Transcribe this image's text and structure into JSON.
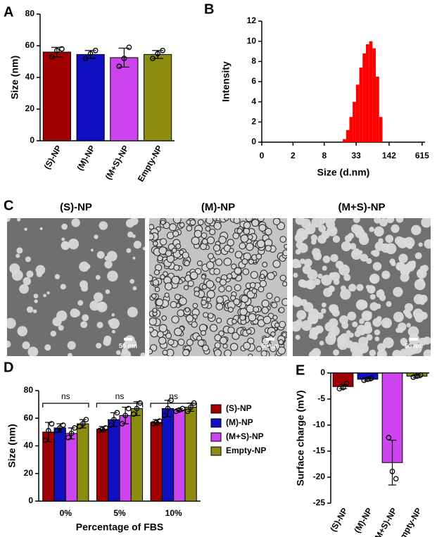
{
  "chart_data": [
    {
      "label": "A",
      "type": "bar",
      "ylabel": "Size (nm)",
      "categories": [
        "(S)-NP",
        "(M)-NP",
        "(M+S)-NP",
        "Empty-NP"
      ],
      "values": [
        56,
        54.5,
        52.5,
        54.5
      ],
      "errors": [
        3,
        2.5,
        6,
        2.5
      ],
      "points": [
        [
          53,
          57,
          58
        ],
        [
          52,
          55,
          57
        ],
        [
          47,
          52,
          59
        ],
        [
          52,
          55,
          57
        ]
      ],
      "colors": [
        "#a00000",
        "#1010c0",
        "#cc44ee",
        "#8c8c10"
      ],
      "ylim": [
        0,
        80
      ],
      "yticks": [
        0,
        20,
        40,
        60,
        80
      ]
    },
    {
      "label": "B",
      "type": "histogram",
      "xlabel": "Size (d.nm)",
      "ylabel": "Intensity",
      "bins": [
        18.2,
        21.1,
        24.4,
        28.2,
        32.7,
        37.9,
        43.8,
        50.8,
        58.8,
        68.1,
        78.8,
        91.3,
        105.7
      ],
      "counts": [
        0.3,
        1.2,
        2.5,
        4.0,
        5.7,
        7.4,
        8.8,
        9.7,
        10.0,
        9.3,
        6.5,
        2.5
      ],
      "color": "#ff0000",
      "xscale": "log",
      "xlim": [
        0.5,
        700
      ],
      "xticks": [
        {
          "value": 0.5,
          "label": "0"
        },
        2,
        8,
        33,
        142,
        615
      ],
      "ylim": [
        0,
        12
      ],
      "yticks": [
        0,
        2,
        4,
        6,
        8,
        10,
        12
      ]
    },
    {
      "label": "D",
      "type": "bar",
      "xlabel": "Percentage of FBS",
      "ylabel": "Size (nm)",
      "categories": [
        "0%",
        "5%",
        "10%"
      ],
      "annotations": [
        "ns",
        "ns",
        "ns"
      ],
      "legend": "right",
      "series": [
        {
          "name": "(S)-NP",
          "color": "#a00000",
          "values": [
            50,
            52,
            57
          ],
          "errors": [
            7,
            2,
            2
          ],
          "points": [
            [
              44,
              51,
              56
            ],
            [
              51,
              52,
              53
            ],
            [
              56,
              57,
              58
            ]
          ]
        },
        {
          "name": "(M)-NP",
          "color": "#1010c0",
          "values": [
            53,
            59,
            67
          ],
          "errors": [
            3,
            5,
            6
          ],
          "points": [
            [
              51,
              53,
              55
            ],
            [
              55,
              59,
              64
            ],
            [
              62,
              67,
              73
            ]
          ]
        },
        {
          "name": "(M+S)-NP",
          "color": "#cc44ee",
          "values": [
            49,
            62,
            66
          ],
          "errors": [
            4,
            6,
            1
          ],
          "points": [
            [
              46,
              49,
              53
            ],
            [
              56,
              62,
              67
            ],
            [
              65,
              66,
              67
            ]
          ]
        },
        {
          "name": "Empty-NP",
          "color": "#8c8c10",
          "values": [
            56,
            67,
            68
          ],
          "errors": [
            3,
            5,
            3
          ],
          "points": [
            [
              54,
              56,
              59
            ],
            [
              63,
              67,
              71
            ],
            [
              65,
              68,
              71
            ]
          ]
        }
      ],
      "ylim": [
        0,
        80
      ],
      "yticks": [
        0,
        20,
        40,
        60,
        80
      ]
    },
    {
      "label": "E",
      "type": "bar",
      "ylabel": "Surface charge (mV)",
      "categories": [
        "(S)-NP",
        "(M)-NP",
        "(M+S)-NP",
        "Empty-NP"
      ],
      "values": [
        -2.6,
        -1.2,
        -17.2,
        -0.6
      ],
      "errors": [
        0.4,
        0.3,
        4.3,
        0.3
      ],
      "points": [
        [
          -3.0,
          -2.8,
          -2.0
        ],
        [
          -1.4,
          -1.2,
          -1.0
        ],
        [
          -12.4,
          -18.9,
          -20.3
        ],
        [
          -0.8,
          -0.6,
          -0.4
        ]
      ],
      "colors": [
        "#a00000",
        "#1010c0",
        "#cc44ee",
        "#8c8c10"
      ],
      "ylim": [
        -25,
        0
      ],
      "yticks": [
        0,
        -5,
        -10,
        -15,
        -20,
        -25
      ]
    }
  ],
  "micrographs": {
    "label": "C",
    "panels": [
      {
        "title": "(S)-NP",
        "scale_bar": "50 nm"
      },
      {
        "title": "(M)-NP",
        "scale_bar": "50 nm"
      },
      {
        "title": "(M+S)-NP",
        "scale_bar": "50 nm"
      }
    ]
  }
}
